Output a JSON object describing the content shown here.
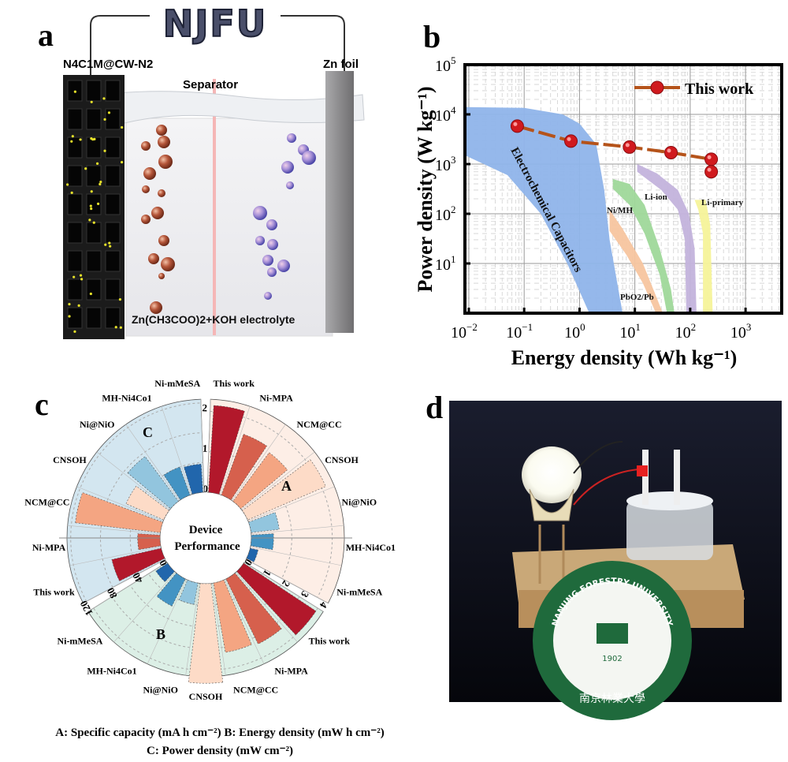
{
  "panel_labels": {
    "a": "a",
    "b": "b",
    "c": "c",
    "d": "d"
  },
  "panel_a": {
    "logo_text": "NJFU",
    "cathode_label": "N4C1M@CW-N2",
    "separator_label": "Separator",
    "anode_label": "Zn foil",
    "electrolyte_label": "Zn(CH3COO)2+KOH electrolyte"
  },
  "chart_data": [
    {
      "type": "scatter",
      "title": "",
      "xlabel": "Energy density (Wh kg⁻¹)",
      "ylabel": "Power density (W kg⁻¹)",
      "xscale": "log",
      "yscale": "log",
      "xlim": [
        0.0085,
        4500
      ],
      "ylim": [
        1,
        100000
      ],
      "x_ticks": [
        {
          "base": "10",
          "exp": "−2"
        },
        {
          "base": "10",
          "exp": "−1"
        },
        {
          "base": "10",
          "exp": "0"
        },
        {
          "base": "10",
          "exp": "1"
        },
        {
          "base": "10",
          "exp": "2"
        },
        {
          "base": "10",
          "exp": "3"
        }
      ],
      "x_tick_values": [
        0.01,
        0.1,
        1,
        10,
        100,
        1000
      ],
      "y_ticks": [
        {
          "base": "10",
          "exp": "1"
        },
        {
          "base": "10",
          "exp": "2"
        },
        {
          "base": "10",
          "exp": "3"
        },
        {
          "base": "10",
          "exp": "4"
        },
        {
          "base": "10",
          "exp": "5"
        }
      ],
      "y_tick_values": [
        10,
        100,
        1000,
        10000,
        100000
      ],
      "grid": true,
      "legend": {
        "position": "top-right",
        "entries": [
          "This work"
        ]
      },
      "series": [
        {
          "name": "This work",
          "color": "#c8141c",
          "line_color": "#b5531a",
          "points": [
            [
              0.075,
              5800
            ],
            [
              0.7,
              2900
            ],
            [
              8,
              2200
            ],
            [
              45,
              1700
            ],
            [
              240,
              1250
            ],
            [
              240,
              700
            ]
          ]
        }
      ],
      "regions": [
        {
          "name": "Electrochemical Capacitors",
          "color": "#8fb4ea",
          "polygon": [
            [
              0.0085,
              14000
            ],
            [
              0.1,
              13500
            ],
            [
              0.5,
              10000
            ],
            [
              1,
              6500
            ],
            [
              2,
              2500
            ],
            [
              2.8,
              300
            ],
            [
              3.5,
              30
            ],
            [
              6,
              1
            ],
            [
              1.5,
              1
            ],
            [
              0.6,
              10
            ],
            [
              0.2,
              100
            ],
            [
              0.05,
              600
            ],
            [
              0.0085,
              1500
            ]
          ]
        },
        {
          "name": "PbO2/Pb",
          "color": "#f7c59f",
          "polygon": [
            [
              3.5,
              120
            ],
            [
              6,
              50
            ],
            [
              14,
              10
            ],
            [
              25,
              2
            ],
            [
              32,
              1
            ],
            [
              24,
              1
            ],
            [
              14,
              4
            ],
            [
              7,
              15
            ],
            [
              3.5,
              45
            ]
          ]
        },
        {
          "name": "Ni/MH",
          "color": "#9fd89a",
          "polygon": [
            [
              4,
              500
            ],
            [
              8,
              400
            ],
            [
              15,
              150
            ],
            [
              28,
              20
            ],
            [
              45,
              3
            ],
            [
              52,
              1
            ],
            [
              38,
              1
            ],
            [
              28,
              6
            ],
            [
              15,
              40
            ],
            [
              8,
              150
            ],
            [
              4,
              320
            ]
          ]
        },
        {
          "name": "Li-ion",
          "color": "#c3b3dc",
          "polygon": [
            [
              11,
              1000
            ],
            [
              25,
              650
            ],
            [
              60,
              300
            ],
            [
              95,
              100
            ],
            [
              120,
              20
            ],
            [
              130,
              1
            ],
            [
              85,
              1
            ],
            [
              80,
              30
            ],
            [
              60,
              120
            ],
            [
              30,
              300
            ],
            [
              11,
              700
            ]
          ]
        },
        {
          "name": "Li-primary",
          "color": "#f6f39a",
          "polygon": [
            [
              120,
              190
            ],
            [
              190,
              190
            ],
            [
              230,
              60
            ],
            [
              255,
              1
            ],
            [
              170,
              1
            ],
            [
              170,
              40
            ],
            [
              140,
              120
            ]
          ]
        }
      ]
    },
    {
      "type": "bar",
      "polar": true,
      "center_label": [
        "Device",
        "Performance"
      ],
      "categories": [
        "This work",
        "Ni-MPA",
        "NCM@CC",
        "CNSOH",
        "Ni@NiO",
        "MH-Ni4Co1",
        "Ni-mMeSA"
      ],
      "category_colors": [
        "#b2182b",
        "#d6604d",
        "#f4a582",
        "#fddbc7",
        "#92c5de",
        "#4393c3",
        "#2166ac"
      ],
      "series": [
        {
          "name": "A",
          "label": "A: Specific capacity (mA h cm⁻²)",
          "values": [
            2.15,
            1.6,
            1.5,
            2.1,
            0.7,
            0.55,
            0.2
          ],
          "ticks": [
            "0",
            "1",
            "2"
          ],
          "tick_values": [
            0,
            1,
            2
          ],
          "max": 2.3,
          "bg": "#fdeee6"
        },
        {
          "name": "B",
          "label": "B: Energy density (mW h cm⁻²)",
          "values": [
            4.0,
            3.35,
            3.25,
            4.6,
            1.0,
            1.4,
            0.65
          ],
          "ticks": [
            "0",
            "1",
            "2",
            "3",
            "4"
          ],
          "tick_values": [
            0,
            1,
            2,
            3,
            4
          ],
          "max": 4.3,
          "bg": "#dcefe6"
        },
        {
          "name": "C",
          "label": "C: Power density (mW cm⁻²)",
          "values": [
            68,
            30,
            115,
            55,
            75,
            40,
            38
          ],
          "ticks": [
            "0",
            "40",
            "80",
            "120"
          ],
          "tick_values": [
            0,
            40,
            80,
            120
          ],
          "max": 125,
          "bg": "#d3e6f0"
        }
      ],
      "legend_lines": [
        "A: Specific capacity (mA h cm⁻²) B: Energy density (mW h cm⁻²)",
        "C: Power density (mW cm⁻²)"
      ]
    }
  ],
  "panel_d": {
    "emblem_text": "NANJING FORESTRY UNIVERSITY",
    "emblem_year": "1902",
    "emblem_chinese": "南京林業大學"
  }
}
